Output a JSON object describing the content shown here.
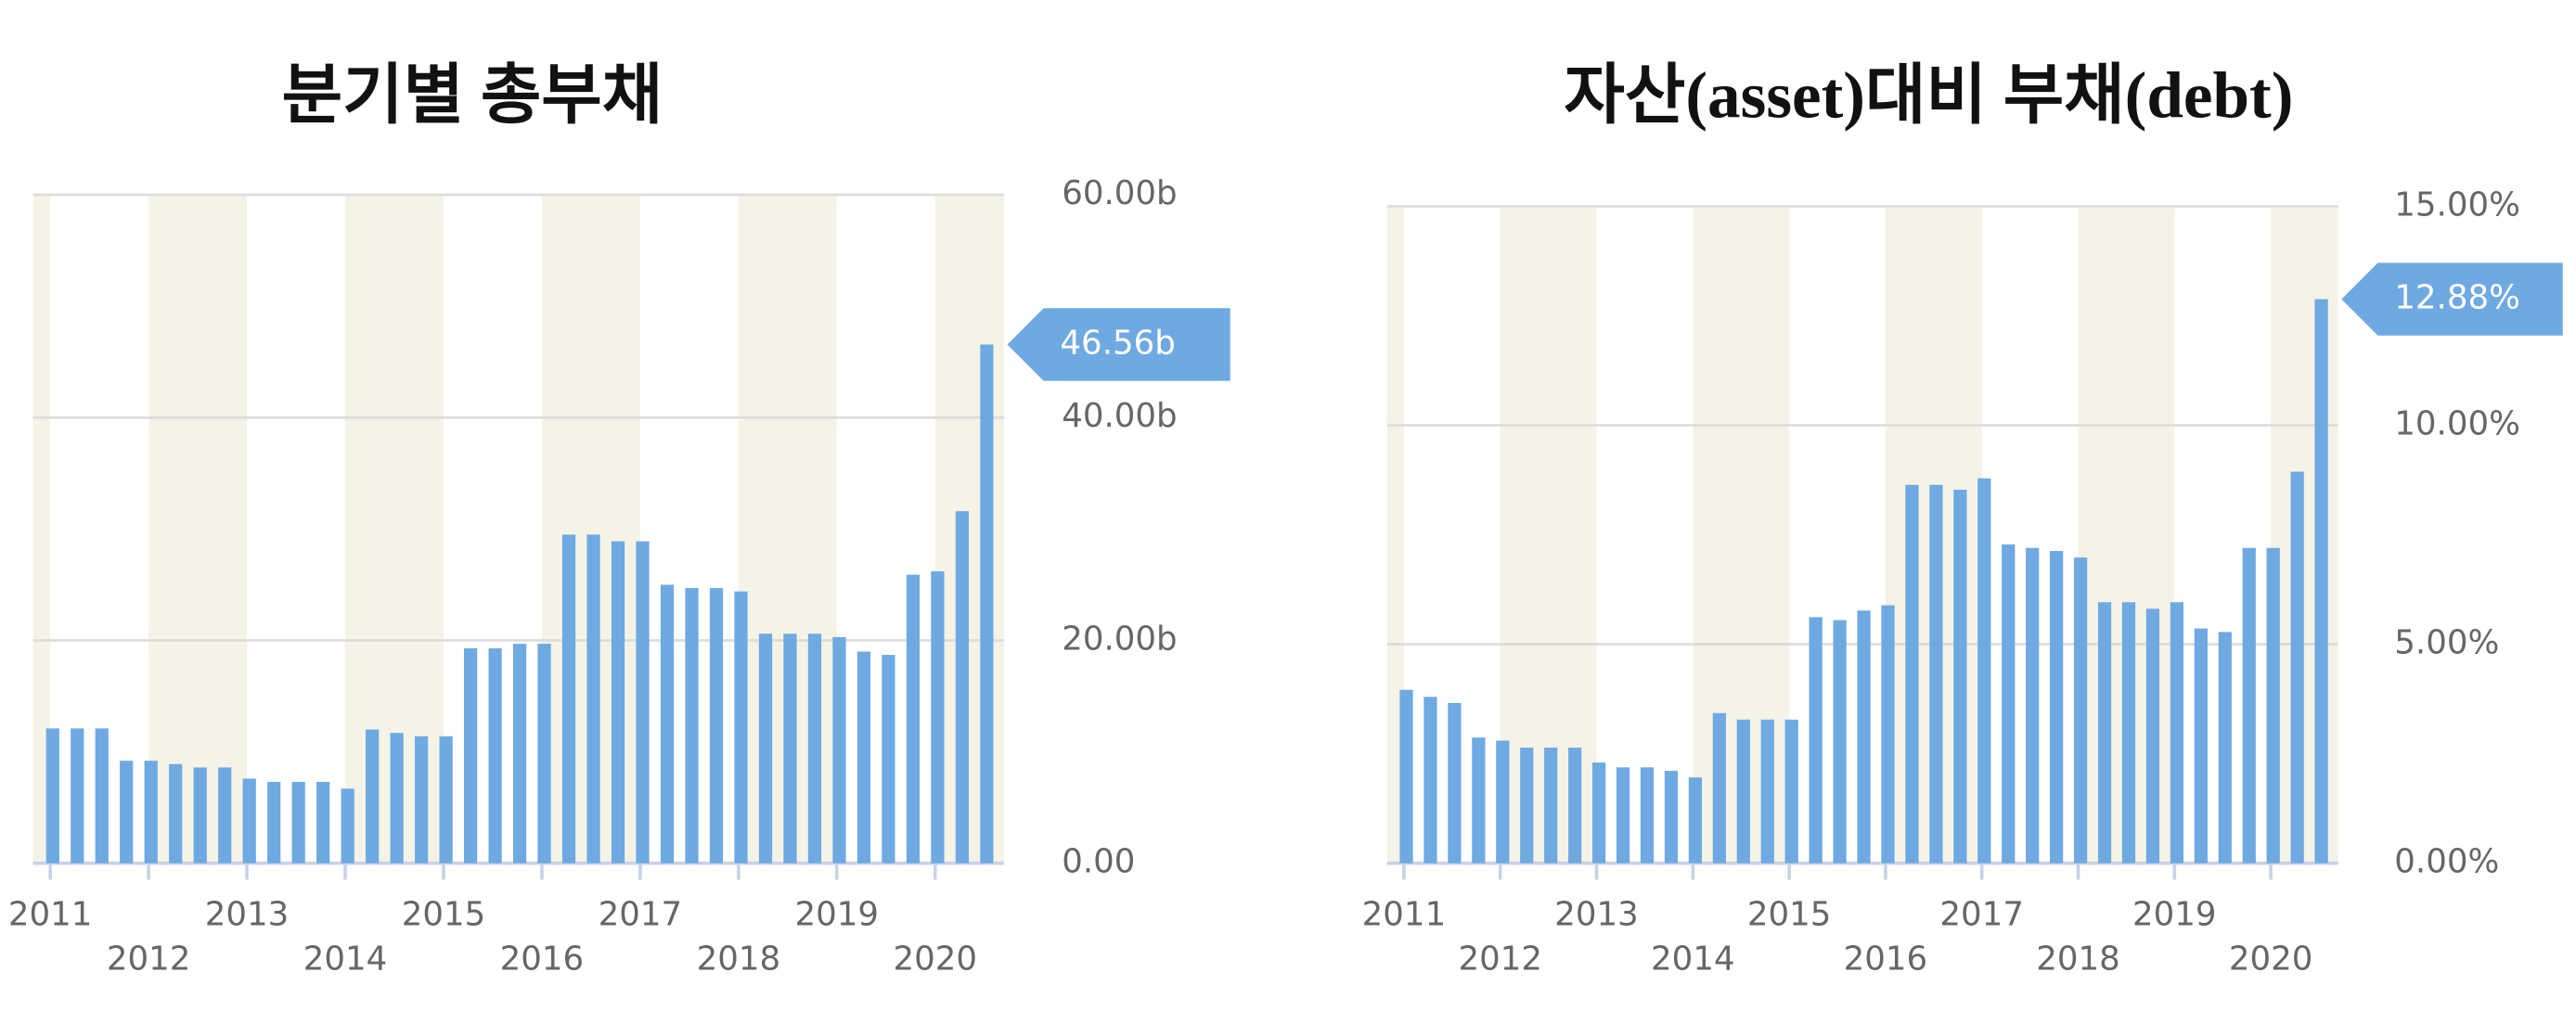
{
  "chart_data": [
    {
      "type": "bar",
      "title": "분기별 총부채",
      "categories": [
        "2011",
        null,
        null,
        null,
        "2012",
        null,
        null,
        null,
        "2013",
        null,
        null,
        null,
        "2014",
        null,
        null,
        null,
        "2015",
        null,
        null,
        null,
        "2016",
        null,
        null,
        null,
        "2017",
        null,
        null,
        null,
        "2018",
        null,
        null,
        null,
        "2019",
        null,
        null,
        null,
        "2020",
        null,
        null
      ],
      "values": [
        12.1,
        12.1,
        12.1,
        9.2,
        9.2,
        8.9,
        8.6,
        8.6,
        7.6,
        7.3,
        7.3,
        7.3,
        6.7,
        12.0,
        11.7,
        11.4,
        11.4,
        19.3,
        19.3,
        19.7,
        19.7,
        29.5,
        29.5,
        28.9,
        28.9,
        25.0,
        24.7,
        24.7,
        24.4,
        20.6,
        20.6,
        20.6,
        20.3,
        19.0,
        18.7,
        25.9,
        26.2,
        31.6,
        46.56
      ],
      "value_labels": [
        null,
        null,
        null,
        null,
        null,
        null,
        null,
        null,
        null,
        null,
        null,
        null,
        null,
        null,
        null,
        null,
        null,
        null,
        null,
        null,
        null,
        null,
        null,
        null,
        null,
        null,
        null,
        null,
        null,
        null,
        null,
        null,
        null,
        null,
        null,
        null,
        null,
        null,
        "46.56b"
      ],
      "color": "#6fa9e2",
      "band_color": "#f4f3e5",
      "ylim": [
        0,
        60
      ],
      "yticks": [
        {
          "value": 0,
          "label": "0.00"
        },
        {
          "value": 20,
          "label": "20.00b"
        },
        {
          "value": 40,
          "label": "40.00b"
        },
        {
          "value": 60,
          "label": "60.00b"
        }
      ],
      "grid": true
    },
    {
      "type": "bar",
      "title": "자산(asset)대비 부채(debt)",
      "categories": [
        "2011",
        null,
        null,
        null,
        "2012",
        null,
        null,
        null,
        "2013",
        null,
        null,
        null,
        "2014",
        null,
        null,
        null,
        "2015",
        null,
        null,
        null,
        "2016",
        null,
        null,
        null,
        "2017",
        null,
        null,
        null,
        "2018",
        null,
        null,
        null,
        "2019",
        null,
        null,
        null,
        "2020",
        null,
        null
      ],
      "values": [
        3.96,
        3.8,
        3.66,
        2.87,
        2.8,
        2.64,
        2.64,
        2.64,
        2.3,
        2.19,
        2.19,
        2.11,
        1.96,
        3.43,
        3.28,
        3.28,
        3.28,
        5.62,
        5.55,
        5.77,
        5.89,
        8.64,
        8.64,
        8.53,
        8.79,
        7.28,
        7.2,
        7.13,
        6.98,
        5.96,
        5.96,
        5.81,
        5.96,
        5.36,
        5.28,
        7.2,
        7.2,
        8.94,
        12.88
      ],
      "value_labels": [
        null,
        null,
        null,
        null,
        null,
        null,
        null,
        null,
        null,
        null,
        null,
        null,
        null,
        null,
        null,
        null,
        null,
        null,
        null,
        null,
        null,
        null,
        null,
        null,
        null,
        null,
        null,
        null,
        null,
        null,
        null,
        null,
        null,
        null,
        null,
        null,
        null,
        null,
        "12.88%"
      ],
      "color": "#6fa9e2",
      "band_color": "#f4f3e5",
      "ylim": [
        0,
        15
      ],
      "yticks": [
        {
          "value": 0,
          "label": "0.00%"
        },
        {
          "value": 5,
          "label": "5.00%"
        },
        {
          "value": 10,
          "label": "10.00%"
        },
        {
          "value": 15,
          "label": "15.00%"
        }
      ],
      "grid": true
    }
  ]
}
